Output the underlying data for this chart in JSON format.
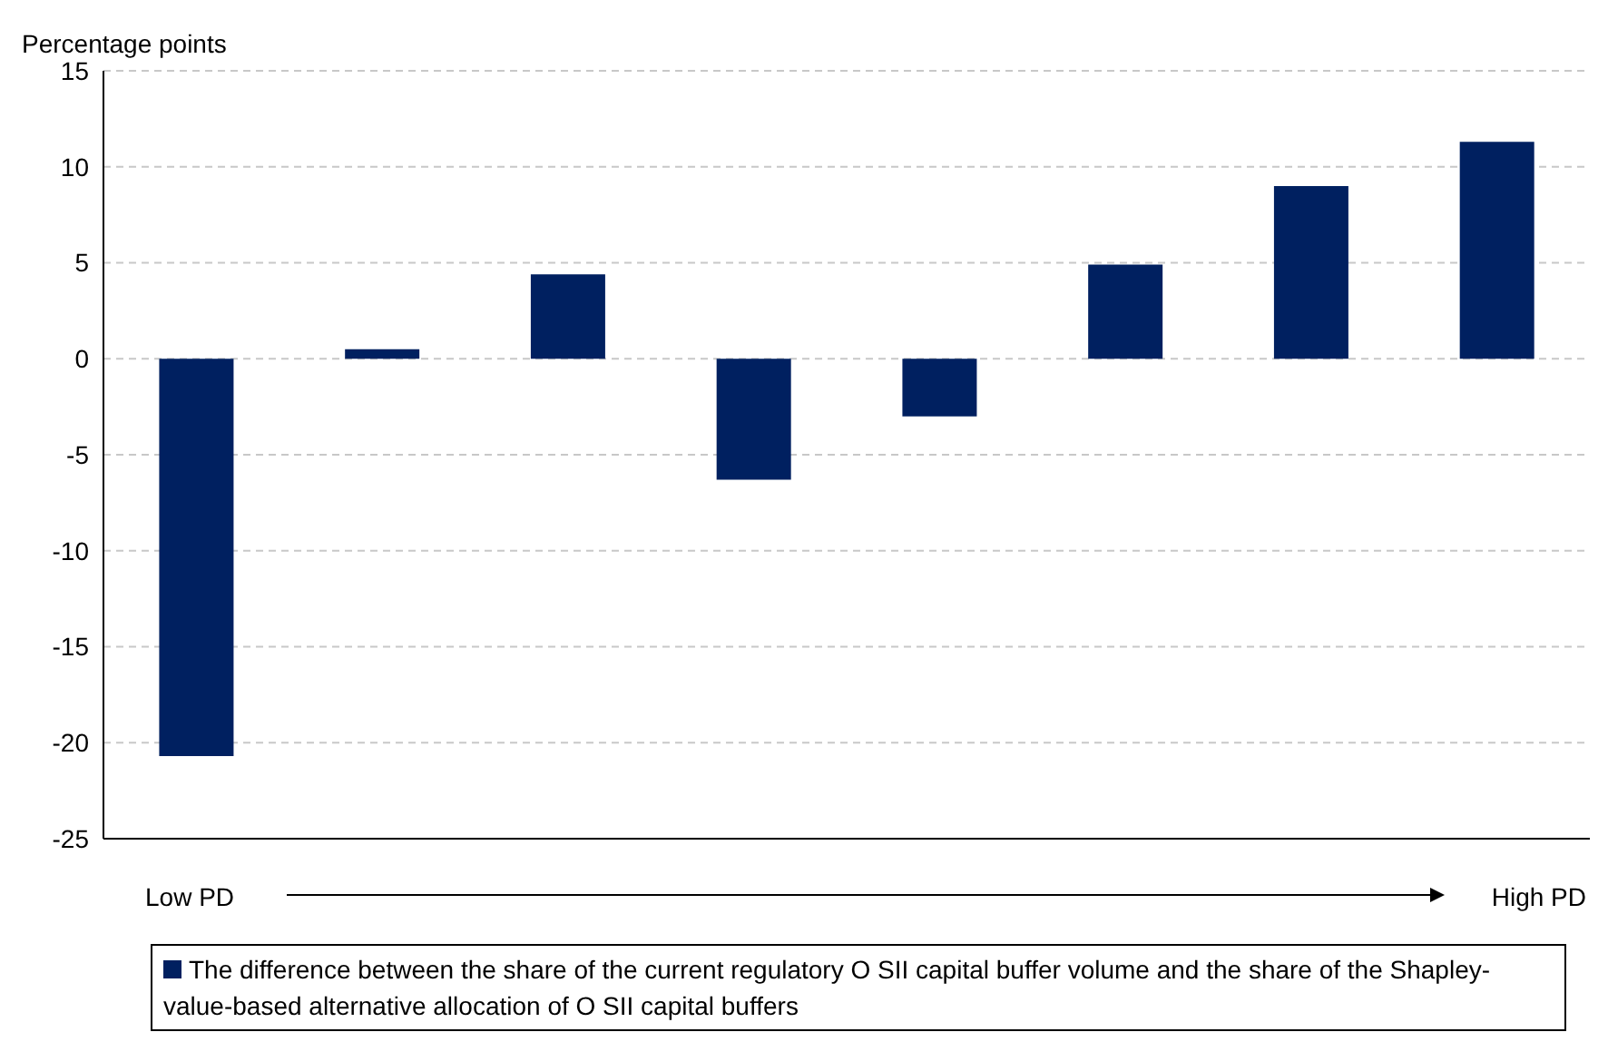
{
  "chart_data": {
    "type": "bar",
    "ylabel": "Percentage points",
    "categories": [
      null,
      null,
      null,
      null,
      null,
      null,
      null,
      null
    ],
    "series": [
      {
        "name": "The difference between the share of the current regulatory O SII capital buffer volume and the share of the Shapley-value-based alternative allocation of O SII capital buffers",
        "color": "#002060",
        "values": [
          -20.7,
          0.5,
          4.4,
          -6.3,
          -3.0,
          4.9,
          9.0,
          11.3
        ]
      }
    ],
    "ylim": [
      -25,
      15
    ],
    "yticks": [
      -25,
      -20,
      -15,
      -10,
      -5,
      0,
      5,
      10,
      15
    ],
    "grid": "y",
    "legend": "bottom",
    "tick_labels": "y",
    "annotations": [
      "Low PD",
      "High PD"
    ]
  }
}
